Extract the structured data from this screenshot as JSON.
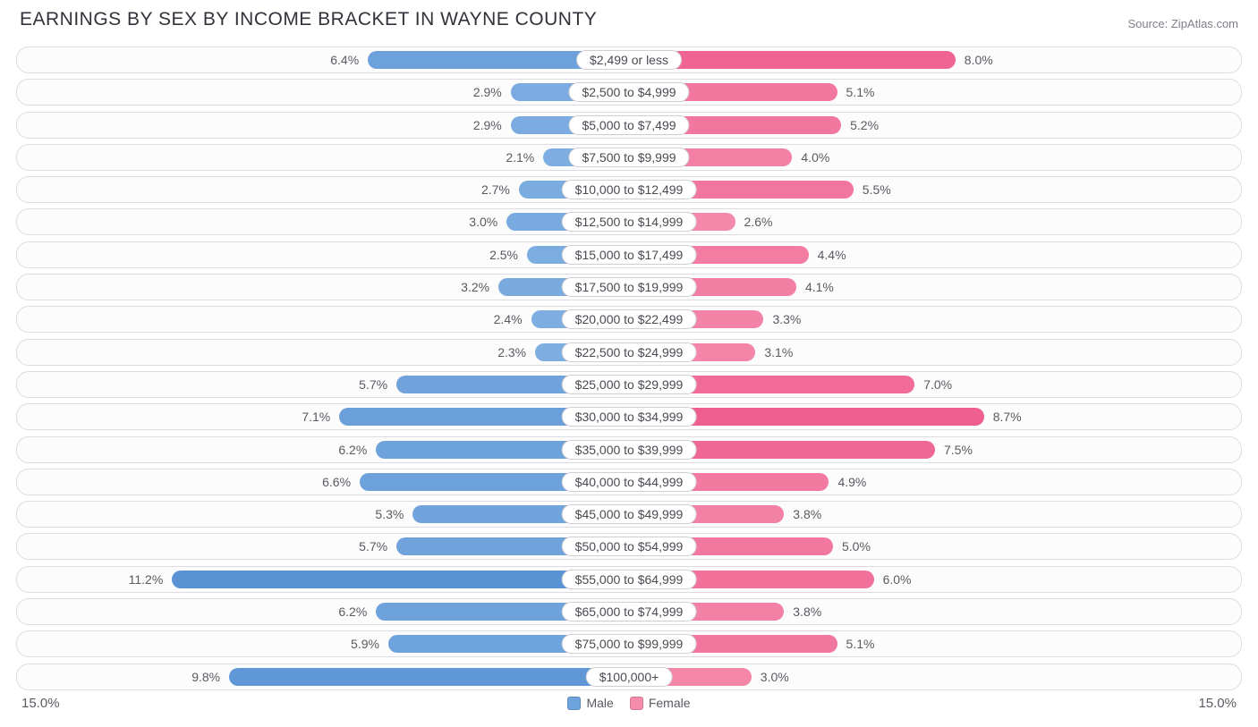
{
  "title": "EARNINGS BY SEX BY INCOME BRACKET IN WAYNE COUNTY",
  "source": "Source: ZipAtlas.com",
  "axis_max": 15.0,
  "axis_left_label": "15.0%",
  "axis_right_label": "15.0%",
  "legend": {
    "male": {
      "label": "Male",
      "color": "#6fa3dd"
    },
    "female": {
      "label": "Female",
      "color": "#f58cab"
    }
  },
  "colors": {
    "male_base": "#86b4e4",
    "male_dark": "#5a93d4",
    "female_base": "#f79ab5",
    "female_dark": "#ee5f90",
    "row_border": "#dcdce0",
    "row_bg": "#fcfcfc",
    "text": "#5a5a62",
    "background": "#ffffff"
  },
  "rows": [
    {
      "bracket": "$2,499 or less",
      "male": 6.4,
      "female": 8.0
    },
    {
      "bracket": "$2,500 to $4,999",
      "male": 2.9,
      "female": 5.1
    },
    {
      "bracket": "$5,000 to $7,499",
      "male": 2.9,
      "female": 5.2
    },
    {
      "bracket": "$7,500 to $9,999",
      "male": 2.1,
      "female": 4.0
    },
    {
      "bracket": "$10,000 to $12,499",
      "male": 2.7,
      "female": 5.5
    },
    {
      "bracket": "$12,500 to $14,999",
      "male": 3.0,
      "female": 2.6
    },
    {
      "bracket": "$15,000 to $17,499",
      "male": 2.5,
      "female": 4.4
    },
    {
      "bracket": "$17,500 to $19,999",
      "male": 3.2,
      "female": 4.1
    },
    {
      "bracket": "$20,000 to $22,499",
      "male": 2.4,
      "female": 3.3
    },
    {
      "bracket": "$22,500 to $24,999",
      "male": 2.3,
      "female": 3.1
    },
    {
      "bracket": "$25,000 to $29,999",
      "male": 5.7,
      "female": 7.0
    },
    {
      "bracket": "$30,000 to $34,999",
      "male": 7.1,
      "female": 8.7
    },
    {
      "bracket": "$35,000 to $39,999",
      "male": 6.2,
      "female": 7.5
    },
    {
      "bracket": "$40,000 to $44,999",
      "male": 6.6,
      "female": 4.9
    },
    {
      "bracket": "$45,000 to $49,999",
      "male": 5.3,
      "female": 3.8
    },
    {
      "bracket": "$50,000 to $54,999",
      "male": 5.7,
      "female": 5.0
    },
    {
      "bracket": "$55,000 to $64,999",
      "male": 11.2,
      "female": 6.0
    },
    {
      "bracket": "$65,000 to $74,999",
      "male": 6.2,
      "female": 3.8
    },
    {
      "bracket": "$75,000 to $99,999",
      "male": 5.9,
      "female": 5.1
    },
    {
      "bracket": "$100,000+",
      "male": 9.8,
      "female": 3.0
    }
  ]
}
